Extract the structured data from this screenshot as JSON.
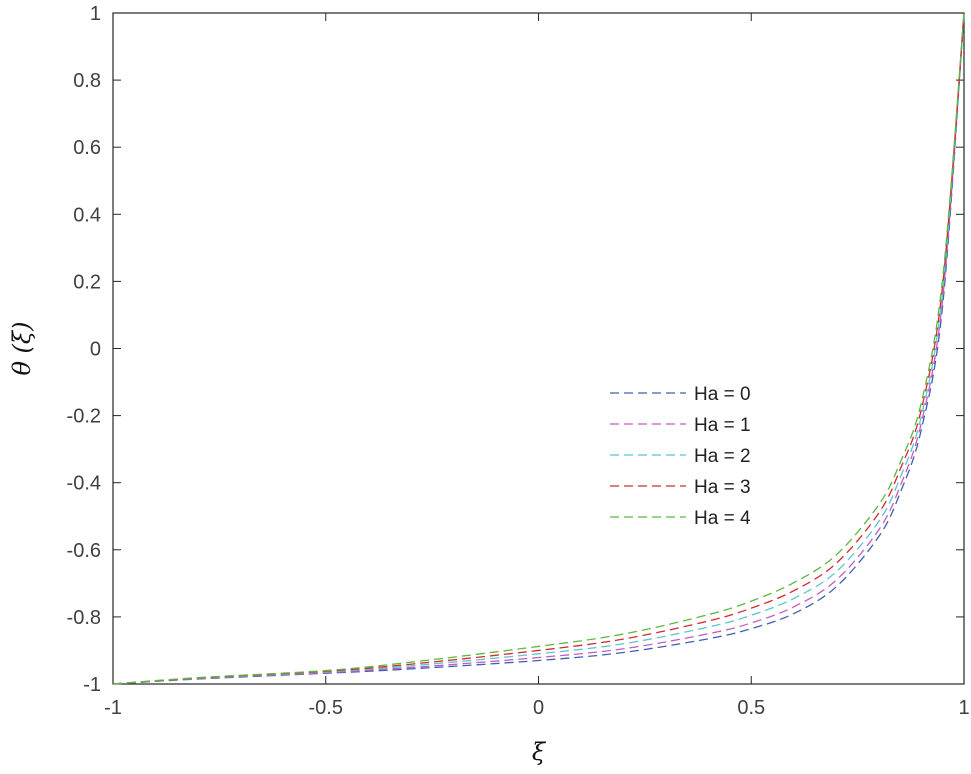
{
  "chart_data": {
    "type": "line",
    "title": "",
    "xlabel": "ξ",
    "ylabel": "θ (ξ)",
    "xlim": [
      -1,
      1
    ],
    "ylim": [
      -1,
      1
    ],
    "xticks": [
      -1,
      -0.5,
      0,
      0.5,
      1
    ],
    "xtick_labels": [
      "-1",
      "-0.5",
      "0",
      "0.5",
      "1"
    ],
    "yticks": [
      -1,
      -0.8,
      -0.6,
      -0.4,
      -0.2,
      0,
      0.2,
      0.4,
      0.6,
      0.8,
      1
    ],
    "ytick_labels": [
      "-1",
      "-0.8",
      "-0.6",
      "-0.4",
      "-0.2",
      "0",
      "0.2",
      "0.4",
      "0.6",
      "0.8",
      "1"
    ],
    "grid": false,
    "legend_position": "center-right",
    "line_style": "dashed",
    "x": [
      -1,
      -0.8,
      -0.5,
      -0.3,
      0,
      0.2,
      0.4,
      0.5,
      0.6,
      0.7,
      0.8,
      0.85,
      0.9,
      0.95,
      1
    ],
    "series": [
      {
        "name": "Ha = 0",
        "color": "#3f5fb0",
        "values": [
          -1,
          -0.985,
          -0.968,
          -0.955,
          -0.93,
          -0.906,
          -0.865,
          -0.835,
          -0.79,
          -0.71,
          -0.56,
          -0.43,
          -0.24,
          0.13,
          1
        ]
      },
      {
        "name": "Ha = 1",
        "color": "#c45cbf",
        "values": [
          -1,
          -0.984,
          -0.966,
          -0.951,
          -0.921,
          -0.895,
          -0.85,
          -0.818,
          -0.77,
          -0.69,
          -0.54,
          -0.41,
          -0.22,
          0.15,
          1
        ]
      },
      {
        "name": "Ha = 2",
        "color": "#5bc4d4",
        "values": [
          -1,
          -0.983,
          -0.964,
          -0.946,
          -0.91,
          -0.88,
          -0.83,
          -0.795,
          -0.745,
          -0.665,
          -0.515,
          -0.385,
          -0.2,
          0.17,
          1
        ]
      },
      {
        "name": "Ha = 3",
        "color": "#d42a2a",
        "values": [
          -1,
          -0.982,
          -0.962,
          -0.941,
          -0.9,
          -0.866,
          -0.812,
          -0.774,
          -0.722,
          -0.64,
          -0.49,
          -0.36,
          -0.18,
          0.19,
          1
        ]
      },
      {
        "name": "Ha = 4",
        "color": "#5bb83e",
        "values": [
          -1,
          -0.981,
          -0.96,
          -0.935,
          -0.888,
          -0.851,
          -0.793,
          -0.753,
          -0.698,
          -0.615,
          -0.465,
          -0.34,
          -0.16,
          0.21,
          1
        ]
      }
    ]
  }
}
